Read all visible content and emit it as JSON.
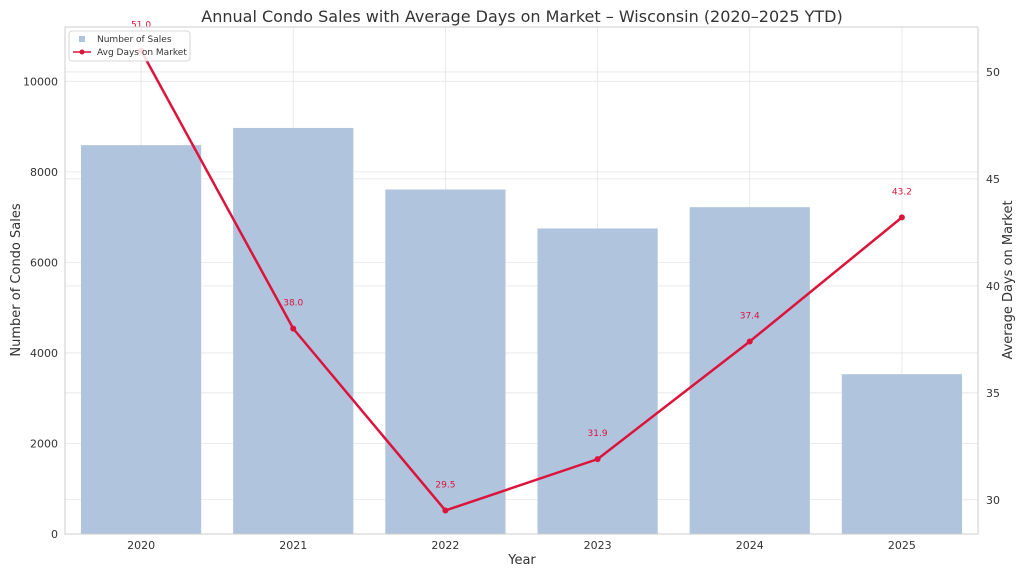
{
  "chart_data": {
    "type": "bar+line",
    "title": "Annual Condo Sales with Average Days on Market – Wisconsin (2020–2025 YTD)",
    "xlabel": "Year",
    "ylabel_left": "Number of Condo Sales",
    "ylabel_right": "Average Days on Market",
    "categories": [
      "2020",
      "2021",
      "2022",
      "2023",
      "2024",
      "2025"
    ],
    "series": [
      {
        "name": "Number of Sales",
        "kind": "bar",
        "axis": "left",
        "values": [
          8590,
          8970,
          7610,
          6750,
          7220,
          3530
        ]
      },
      {
        "name": "Avg Days on Market",
        "kind": "line",
        "axis": "right",
        "values": [
          51.0,
          38.0,
          29.5,
          31.9,
          37.4,
          43.2
        ],
        "labels": [
          "51.0",
          "38.0",
          "29.5",
          "31.9",
          "37.4",
          "43.2"
        ]
      }
    ],
    "ylim_left": [
      0,
      11200
    ],
    "yticks_left": [
      0,
      2000,
      4000,
      6000,
      8000,
      10000
    ],
    "ylim_right": [
      28.4,
      52.1
    ],
    "yticks_right": [
      30,
      35,
      40,
      45,
      50
    ],
    "grid": true,
    "legend_position": "top-left",
    "colors": {
      "bar": "#b0c4de",
      "line": "#dc143c"
    }
  }
}
